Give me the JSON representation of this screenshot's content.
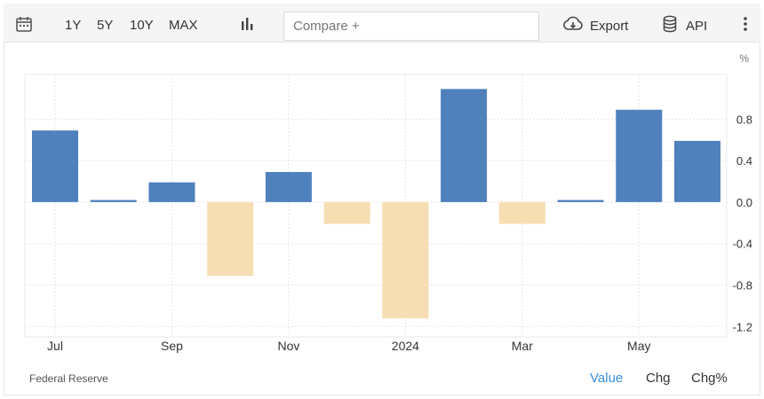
{
  "toolbar": {
    "calendar_icon": "calendar-icon",
    "ranges": [
      "1Y",
      "5Y",
      "10Y",
      "MAX"
    ],
    "chart_type_icon": "bar-chart-icon",
    "compare_placeholder": "Compare +",
    "export_label": "Export",
    "export_icon": "cloud-download-icon",
    "api_label": "API",
    "api_icon": "database-icon",
    "more_icon": "more-vertical-icon"
  },
  "footer": {
    "source": "Federal Reserve",
    "modes": [
      "Value",
      "Chg",
      "Chg%"
    ],
    "active_mode": "Value"
  },
  "colors": {
    "positive": "#4f81bd",
    "negative": "#f6deb2",
    "active_mode": "#3a8fd9"
  },
  "chart_data": {
    "type": "bar",
    "unit_label": "%",
    "categories": [
      "2023-07",
      "2023-08",
      "2023-09",
      "2023-10",
      "2023-11",
      "2023-12",
      "2024-01",
      "2024-02",
      "2024-03",
      "2024-04",
      "2024-05",
      "2024-06"
    ],
    "values": [
      0.69,
      0.02,
      0.19,
      -0.71,
      0.29,
      -0.21,
      -1.12,
      1.09,
      -0.21,
      0.02,
      0.89,
      0.59
    ],
    "x_tick_labels": [
      {
        "category": "2023-07",
        "label": "Jul"
      },
      {
        "category": "2023-09",
        "label": "Sep"
      },
      {
        "category": "2023-11",
        "label": "Nov"
      },
      {
        "category": "2024-01",
        "label": "2024"
      },
      {
        "category": "2024-03",
        "label": "Mar"
      },
      {
        "category": "2024-05",
        "label": "May"
      }
    ],
    "y_ticks": [
      0.8,
      0.4,
      0.0,
      -0.4,
      -0.8,
      -1.2
    ],
    "y_tick_labels": [
      "0.8",
      "0.4",
      "0.0",
      "-0.4",
      "-0.8",
      "-1.2"
    ],
    "ylim": [
      -1.3,
      1.23
    ],
    "grid": true,
    "y_axis_side": "right"
  }
}
